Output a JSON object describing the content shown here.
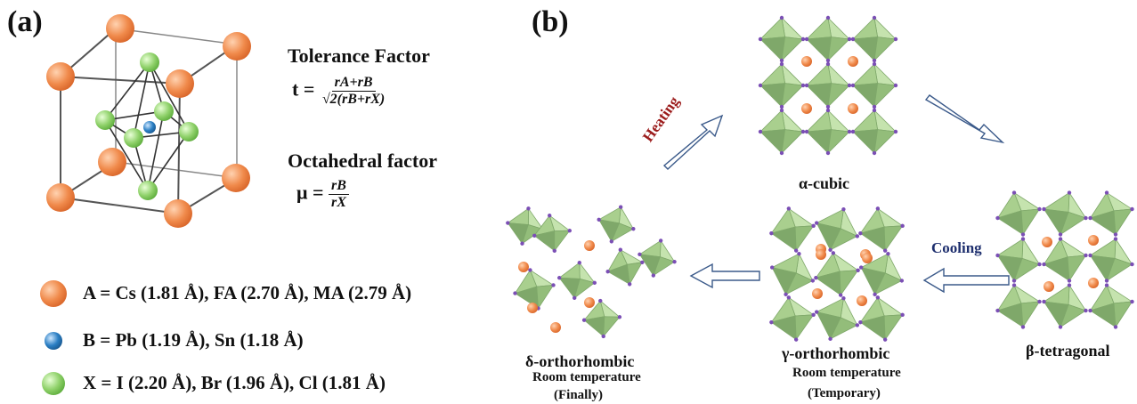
{
  "panel_a": {
    "label": "(a)",
    "tolerance_title": "Tolerance Factor",
    "tolerance_lhs": "t =",
    "tolerance_num": "rA+rB",
    "tolerance_den": "√2(rB+rX)",
    "octahedral_title": "Octahedral factor",
    "octahedral_lhs": "μ =",
    "octahedral_num": "rB",
    "octahedral_den": "rX",
    "legend": [
      {
        "text": "A = Cs (1.81 Å), FA (2.70 Å), MA (2.79 Å)",
        "color": "#f08a4b"
      },
      {
        "text": "B = Pb (1.19 Å), Sn (1.18 Å)",
        "color": "#2b7fc4"
      },
      {
        "text": "X = I (2.20 Å), Br (1.96 Å), Cl (1.81 Å)",
        "color": "#8fd16a"
      }
    ]
  },
  "panel_b": {
    "label": "(b)",
    "phases": {
      "alpha": "α-cubic",
      "beta": "β-tetragonal",
      "gamma": "γ-orthorhombic",
      "gamma_sub1": "Room temperature",
      "gamma_sub2": "(Temporary)",
      "delta": "δ-orthorhombic",
      "delta_sub1": "Room temperature",
      "delta_sub2": "(Finally)"
    },
    "heating": "Heating",
    "cooling": "Cooling",
    "colors": {
      "octahedron": "#a9cf8e",
      "octahedron_dark": "#7fa86a",
      "a_site": "#f08a4b",
      "x_site": "#7b4fb5",
      "heating": "#9b1b1b",
      "cooling": "#1e2f6e"
    }
  }
}
